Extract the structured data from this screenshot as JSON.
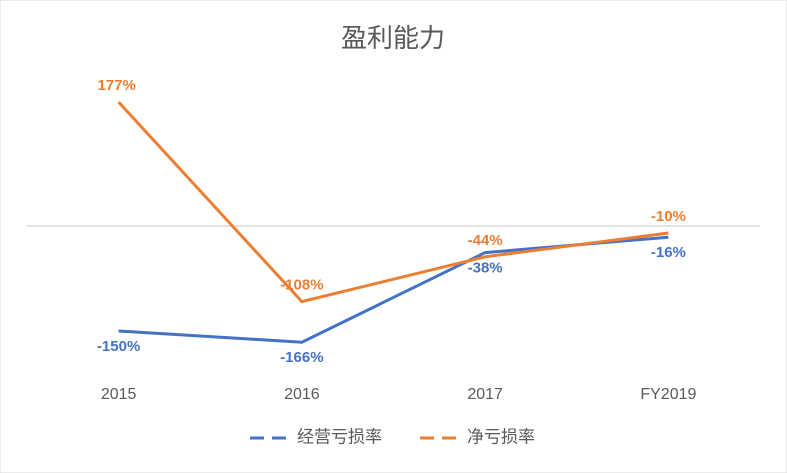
{
  "chart_data": {
    "type": "line",
    "title": "盈利能力",
    "categories": [
      "2015",
      "2016",
      "2017",
      "FY2019"
    ],
    "series": [
      {
        "name": "经营亏损率",
        "color": "#4472c4",
        "values": [
          -150,
          -166,
          -38,
          -16
        ],
        "value_labels": [
          "-150%",
          "-166%",
          "-38%",
          "-16%"
        ]
      },
      {
        "name": "净亏损率",
        "color": "#ed7d31",
        "values": [
          177,
          -108,
          -44,
          -10
        ],
        "value_labels": [
          "177%",
          "-108%",
          "-44%",
          "-10%"
        ]
      }
    ],
    "ylim": [
      -200,
      200
    ]
  }
}
